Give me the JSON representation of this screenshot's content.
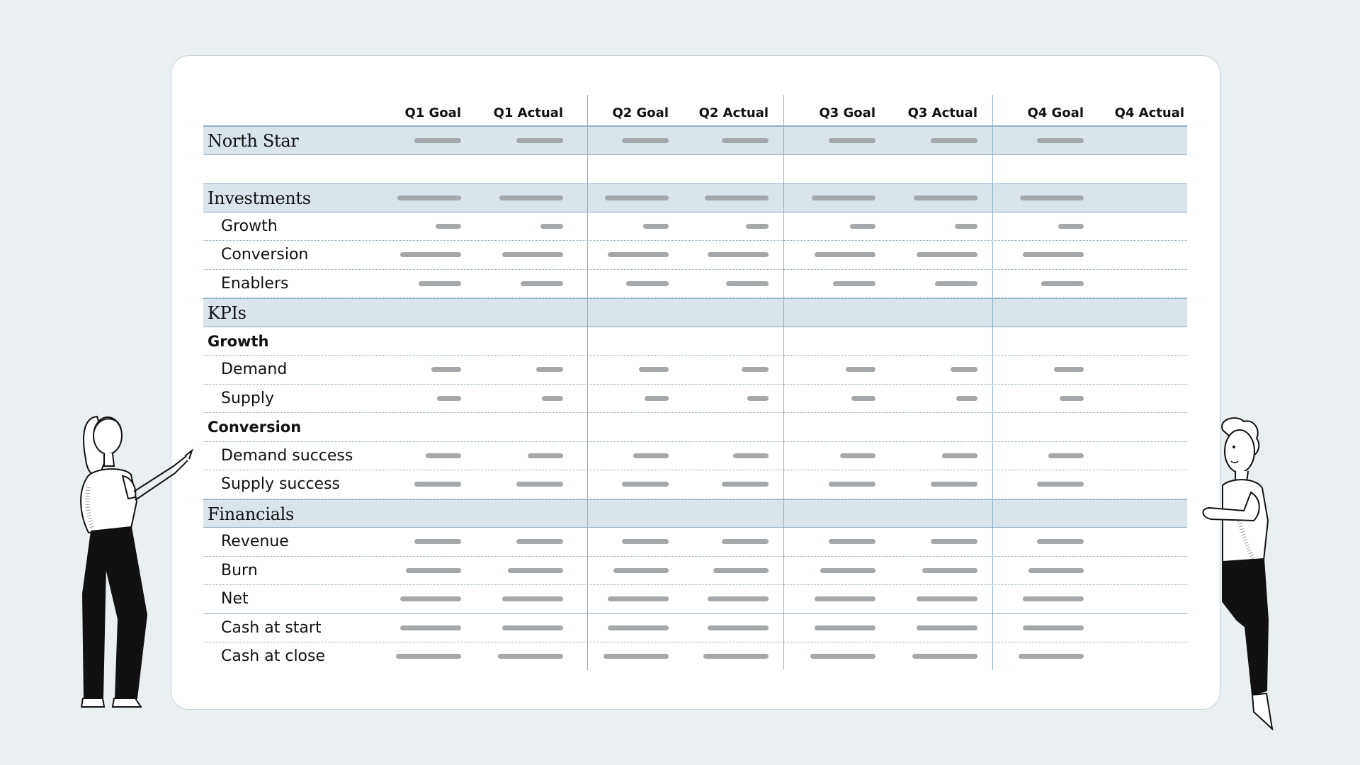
{
  "columns": [
    "Q1 Goal",
    "Q1 Actual",
    "Q2 Goal",
    "Q2 Actual",
    "Q3 Goal",
    "Q3 Actual",
    "Q4 Goal",
    "Q4 Actual"
  ],
  "rows": [
    {
      "label": "North Star",
      "type": "section"
    },
    {
      "label": "",
      "type": "blank"
    },
    {
      "label": "Investments",
      "type": "section"
    },
    {
      "label": "Growth",
      "type": "item"
    },
    {
      "label": "Conversion",
      "type": "item"
    },
    {
      "label": "Enablers",
      "type": "item"
    },
    {
      "label": "KPIs",
      "type": "section"
    },
    {
      "label": "Growth",
      "type": "group"
    },
    {
      "label": "Demand",
      "type": "item"
    },
    {
      "label": "Supply",
      "type": "item"
    },
    {
      "label": "Conversion",
      "type": "group"
    },
    {
      "label": "Demand success",
      "type": "item"
    },
    {
      "label": "Supply success",
      "type": "item"
    },
    {
      "label": "Financials",
      "type": "section"
    },
    {
      "label": "Revenue",
      "type": "item"
    },
    {
      "label": "Burn",
      "type": "item"
    },
    {
      "label": "Net",
      "type": "item"
    },
    {
      "label": "Cash at start",
      "type": "item"
    },
    {
      "label": "Cash at close",
      "type": "item"
    }
  ],
  "colors": {
    "background": "#eaeff2",
    "section_fill": "#d9e4eb",
    "grid_line": "#8fb0c4",
    "placeholder_bar": "#a4a8aa"
  }
}
